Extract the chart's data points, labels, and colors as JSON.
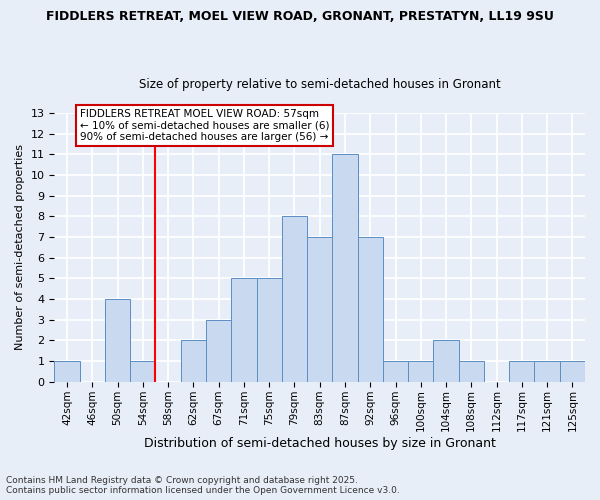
{
  "title_line1": "FIDDLERS RETREAT, MOEL VIEW ROAD, GRONANT, PRESTATYN, LL19 9SU",
  "title_line2": "Size of property relative to semi-detached houses in Gronant",
  "xlabel": "Distribution of semi-detached houses by size in Gronant",
  "ylabel": "Number of semi-detached properties",
  "bar_labels": [
    "42sqm",
    "46sqm",
    "50sqm",
    "54sqm",
    "58sqm",
    "62sqm",
    "67sqm",
    "71sqm",
    "75sqm",
    "79sqm",
    "83sqm",
    "87sqm",
    "92sqm",
    "96sqm",
    "100sqm",
    "104sqm",
    "108sqm",
    "112sqm",
    "117sqm",
    "121sqm",
    "125sqm"
  ],
  "bar_values": [
    1,
    0,
    4,
    1,
    0,
    2,
    3,
    5,
    5,
    8,
    7,
    11,
    7,
    1,
    1,
    2,
    1,
    0,
    1,
    1,
    1
  ],
  "bar_color": "#c9d9f0",
  "bar_edge_color": "#5b8ec4",
  "vline_color": "red",
  "annotation_text": "FIDDLERS RETREAT MOEL VIEW ROAD: 57sqm\n← 10% of semi-detached houses are smaller (6)\n90% of semi-detached houses are larger (56) →",
  "annotation_box_color": "white",
  "annotation_box_edge": "#cc0000",
  "ylim_max": 13,
  "yticks": [
    0,
    1,
    2,
    3,
    4,
    5,
    6,
    7,
    8,
    9,
    10,
    11,
    12,
    13
  ],
  "footnote": "Contains HM Land Registry data © Crown copyright and database right 2025.\nContains public sector information licensed under the Open Government Licence v3.0.",
  "background_color": "#e8eef8",
  "grid_color": "white",
  "title_fontsize": 9,
  "subtitle_fontsize": 8.5,
  "ylabel_fontsize": 8,
  "xlabel_fontsize": 9,
  "tick_fontsize": 7.5,
  "footnote_fontsize": 6.5
}
